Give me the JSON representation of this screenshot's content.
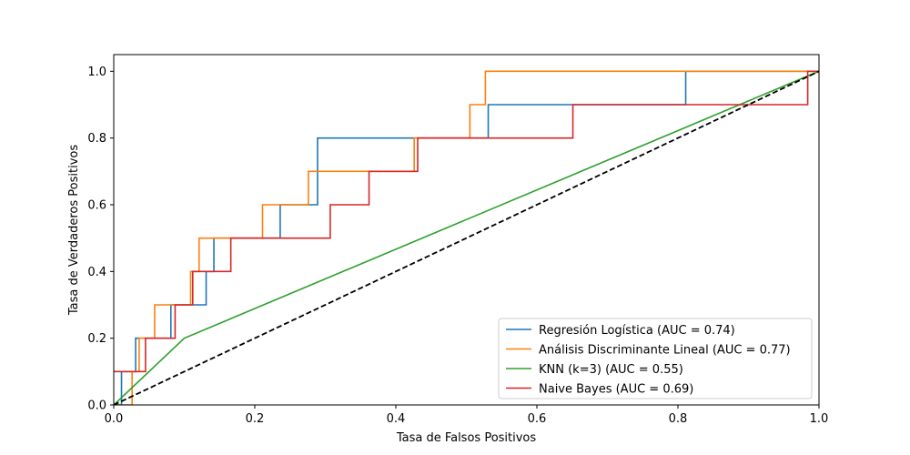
{
  "chart_data": {
    "type": "line",
    "title": "",
    "xlabel": "Tasa de Falsos Positivos",
    "ylabel": "Tasa de Verdaderos Positivos",
    "xlim": [
      0,
      1
    ],
    "ylim": [
      0,
      1.05
    ],
    "xticks": [
      "0.0",
      "0.2",
      "0.4",
      "0.6",
      "0.8",
      "1.0"
    ],
    "yticks": [
      "0.0",
      "0.2",
      "0.4",
      "0.6",
      "0.8",
      "1.0"
    ],
    "grid": false,
    "legend_position": "bottom-right",
    "series": [
      {
        "name": "Regresión Logística (AUC = 0.74)",
        "color": "#1f77b4",
        "x": [
          0,
          0.011,
          0.011,
          0.031,
          0.031,
          0.041,
          0.041,
          0.081,
          0.081,
          0.111,
          0.111,
          0.131,
          0.131,
          0.142,
          0.142,
          0.236,
          0.236,
          0.289,
          0.289,
          0.421,
          0.421,
          0.531,
          0.531,
          0.811,
          0.811,
          1.0
        ],
        "y": [
          0,
          0,
          0.1,
          0.1,
          0.2,
          0.2,
          0.2,
          0.2,
          0.3,
          0.3,
          0.3,
          0.3,
          0.4,
          0.4,
          0.5,
          0.5,
          0.6,
          0.6,
          0.8,
          0.8,
          0.8,
          0.8,
          0.9,
          0.9,
          1.0,
          1.0
        ]
      },
      {
        "name": "Análisis Discriminante Lineal (AUC = 0.77)",
        "color": "#ff7f0e",
        "x": [
          0,
          0.026,
          0.026,
          0.036,
          0.036,
          0.058,
          0.058,
          0.109,
          0.109,
          0.121,
          0.121,
          0.211,
          0.211,
          0.276,
          0.276,
          0.426,
          0.426,
          0.505,
          0.505,
          0.527,
          0.527,
          1.0
        ],
        "y": [
          0,
          0,
          0.1,
          0.1,
          0.2,
          0.2,
          0.3,
          0.3,
          0.4,
          0.4,
          0.5,
          0.5,
          0.6,
          0.6,
          0.7,
          0.7,
          0.8,
          0.8,
          0.9,
          0.9,
          1.0,
          1.0
        ]
      },
      {
        "name": "KNN (k=3) (AUC = 0.55)",
        "color": "#2ca02c",
        "x": [
          0,
          0.1,
          1.0
        ],
        "y": [
          0,
          0.2,
          1.0
        ]
      },
      {
        "name": "Naive Bayes (AUC = 0.69)",
        "color": "#d62728",
        "x": [
          0,
          0.045,
          0.045,
          0.087,
          0.087,
          0.112,
          0.112,
          0.166,
          0.166,
          0.307,
          0.307,
          0.362,
          0.362,
          0.431,
          0.431,
          0.651,
          0.651,
          0.984,
          0.984,
          1.0
        ],
        "y": [
          0.1,
          0.1,
          0.2,
          0.2,
          0.3,
          0.3,
          0.4,
          0.4,
          0.5,
          0.5,
          0.6,
          0.6,
          0.7,
          0.7,
          0.8,
          0.8,
          0.9,
          0.9,
          1.0,
          1.0
        ]
      }
    ],
    "reference_line": {
      "color": "#000000",
      "style": "dashed",
      "x": [
        0,
        1
      ],
      "y": [
        0,
        1
      ]
    }
  }
}
